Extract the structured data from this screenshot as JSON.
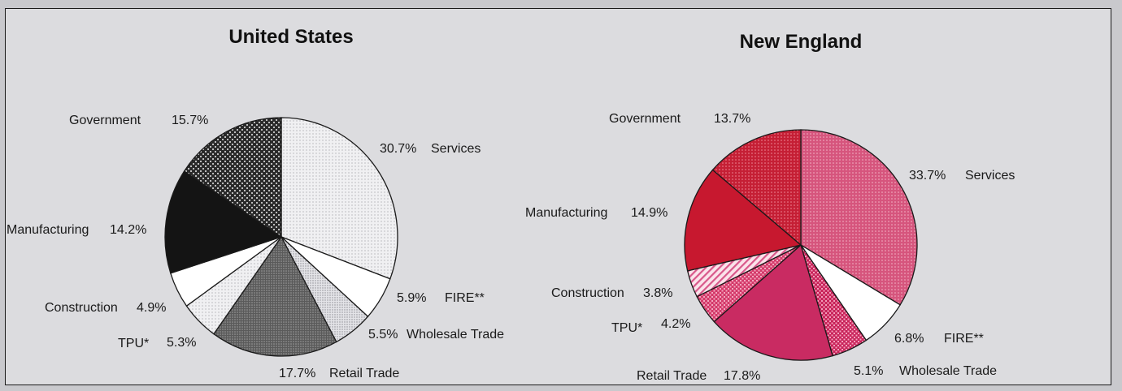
{
  "chart_data": [
    {
      "type": "pie",
      "title": "United States",
      "slices": [
        {
          "label": "Services",
          "value": 30.7,
          "value_text": "30.7%"
        },
        {
          "label": "FIRE**",
          "value": 5.9,
          "value_text": "5.9%"
        },
        {
          "label": "Wholesale Trade",
          "value": 5.5,
          "value_text": "5.5%"
        },
        {
          "label": "Retail Trade",
          "value": 17.7,
          "value_text": "17.7%"
        },
        {
          "label": "TPU*",
          "value": 5.3,
          "value_text": "5.3%"
        },
        {
          "label": "Construction",
          "value": 4.9,
          "value_text": "4.9%"
        },
        {
          "label": "Manufacturing",
          "value": 14.2,
          "value_text": "14.2%"
        },
        {
          "label": "Government",
          "value": 15.7,
          "value_text": "15.7%"
        }
      ]
    },
    {
      "type": "pie",
      "title": "New England",
      "slices": [
        {
          "label": "Services",
          "value": 33.7,
          "value_text": "33.7%"
        },
        {
          "label": "FIRE**",
          "value": 6.8,
          "value_text": "6.8%"
        },
        {
          "label": "Wholesale Trade",
          "value": 5.1,
          "value_text": "5.1%"
        },
        {
          "label": "Retail Trade",
          "value": 17.8,
          "value_text": "17.8%"
        },
        {
          "label": "TPU*",
          "value": 4.2,
          "value_text": "4.2%"
        },
        {
          "label": "Construction",
          "value": 3.8,
          "value_text": "3.8%"
        },
        {
          "label": "Manufacturing",
          "value": 14.9,
          "value_text": "14.9%"
        },
        {
          "label": "Government",
          "value": 13.7,
          "value_text": "13.7%"
        }
      ]
    }
  ],
  "colors": {
    "us": {
      "Services": "#ebebee",
      "FIRE**": "#ffffff",
      "Wholesale Trade": "#e1e1e6",
      "Retail Trade": "#6f6f6f",
      "TPU*": "#e8e8ea",
      "Construction": "#ffffff",
      "Manufacturing": "#141414",
      "Government": "#3c3c3c"
    },
    "ne": {
      "Services": "#d6557d",
      "FIRE**": "#ffffff",
      "Wholesale Trade": "#c8245a",
      "Retail Trade": "#c92b62",
      "TPU*": "#d43a6a",
      "Construction": "#f3bccd",
      "Manufacturing": "#c7182f",
      "Government": "#c51f35"
    }
  }
}
